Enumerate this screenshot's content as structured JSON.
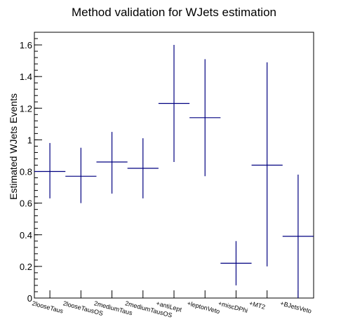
{
  "chart_data": {
    "type": "errorbar",
    "title": "Method validation for WJets estimation",
    "xlabel": "",
    "ylabel": "Estimated WJets Events",
    "ylim": [
      0,
      1.68
    ],
    "yticks": [
      "0",
      "0.2",
      "0.4",
      "0.6",
      "0.8",
      "1",
      "1.2",
      "1.4",
      "1.6"
    ],
    "grid": false,
    "legend": "none",
    "categories": [
      "2looseTaus",
      "2looseTausOS",
      "2mediumTaus",
      "2mediumTausOS",
      "+antiLept",
      "+leptonVeto",
      "+miscDPhi",
      "+MT2",
      "+BJetsVeto"
    ],
    "series": [
      {
        "values": [
          0.8,
          0.77,
          0.86,
          0.82,
          1.23,
          1.14,
          0.22,
          0.84,
          0.39
        ],
        "err_low": [
          0.63,
          0.6,
          0.66,
          0.63,
          0.86,
          0.77,
          0.08,
          0.2,
          0.0
        ],
        "err_high": [
          0.98,
          0.95,
          1.05,
          1.01,
          1.6,
          1.51,
          0.36,
          1.49,
          0.78
        ]
      }
    ],
    "colors": {
      "marker": "#000080",
      "axis": "#000000",
      "background": "#ffffff"
    }
  }
}
